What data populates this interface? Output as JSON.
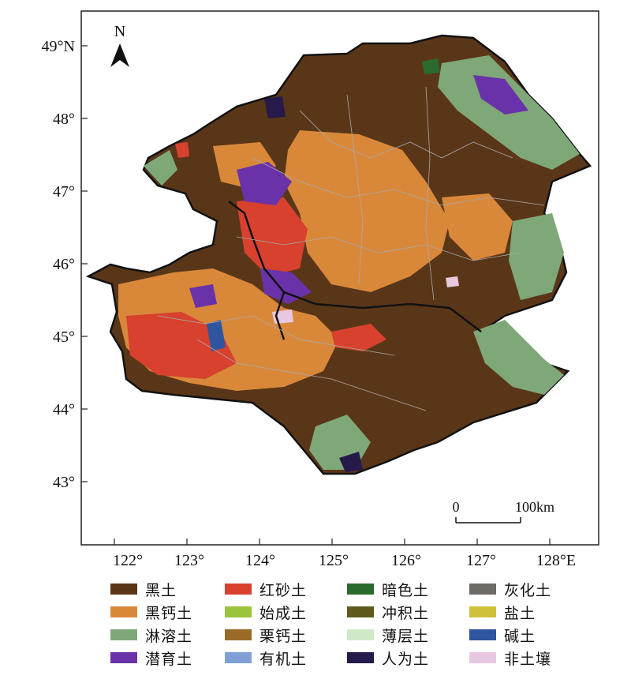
{
  "map": {
    "north_label": "N",
    "scale_bar": {
      "start_label": "0",
      "end_label": "100km"
    },
    "lat_ticks": [
      "49°N",
      "48°",
      "47°",
      "46°",
      "45°",
      "44°",
      "43°"
    ],
    "lon_ticks": [
      "122°",
      "123°",
      "124°",
      "125°",
      "126°",
      "127°",
      "128°E"
    ]
  },
  "legend": [
    {
      "label": "黑土",
      "color": "#5a3618"
    },
    {
      "label": "黑钙土",
      "color": "#d9883a"
    },
    {
      "label": "淋溶土",
      "color": "#7fa878"
    },
    {
      "label": "潜育土",
      "color": "#6a32a8"
    },
    {
      "label": "红砂土",
      "color": "#d8412e"
    },
    {
      "label": "始成土",
      "color": "#9ac43c"
    },
    {
      "label": "栗钙土",
      "color": "#9a6a28"
    },
    {
      "label": "有机土",
      "color": "#7f9fd6"
    },
    {
      "label": "暗色土",
      "color": "#2a6a2e"
    },
    {
      "label": "冲积土",
      "color": "#5e5a1e"
    },
    {
      "label": "薄层土",
      "color": "#cfe8c6"
    },
    {
      "label": "人为土",
      "color": "#261a4a"
    },
    {
      "label": "灰化土",
      "color": "#6e6a66"
    },
    {
      "label": "盐土",
      "color": "#cfc23a"
    },
    {
      "label": "碱土",
      "color": "#2f559e"
    },
    {
      "label": "非土壤",
      "color": "#e8c8e0"
    }
  ]
}
